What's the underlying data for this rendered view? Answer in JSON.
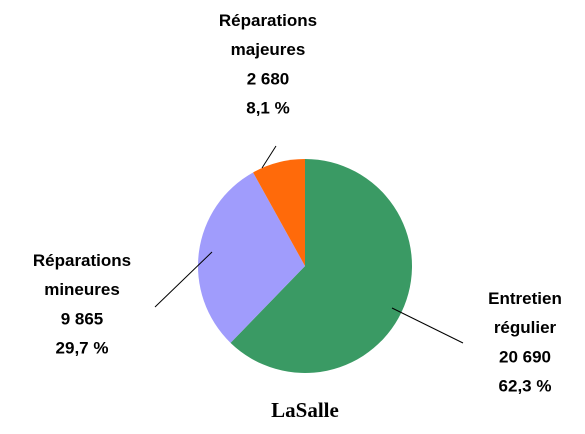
{
  "chart_data": {
    "type": "pie",
    "title": "LaSalle",
    "categories": [
      "Entretien régulier",
      "Réparations mineures",
      "Réparations majeures"
    ],
    "values": [
      20690,
      9865,
      2680
    ],
    "value_labels": [
      "20 690",
      "9 865",
      "2 680"
    ],
    "percentages": [
      62.3,
      29.7,
      8.1
    ],
    "percentage_labels": [
      "62,3 %",
      "29,7 %",
      "8,1 %"
    ],
    "colors": [
      "#3a9a64",
      "#a09cfc",
      "#ff6a0a"
    ]
  }
}
